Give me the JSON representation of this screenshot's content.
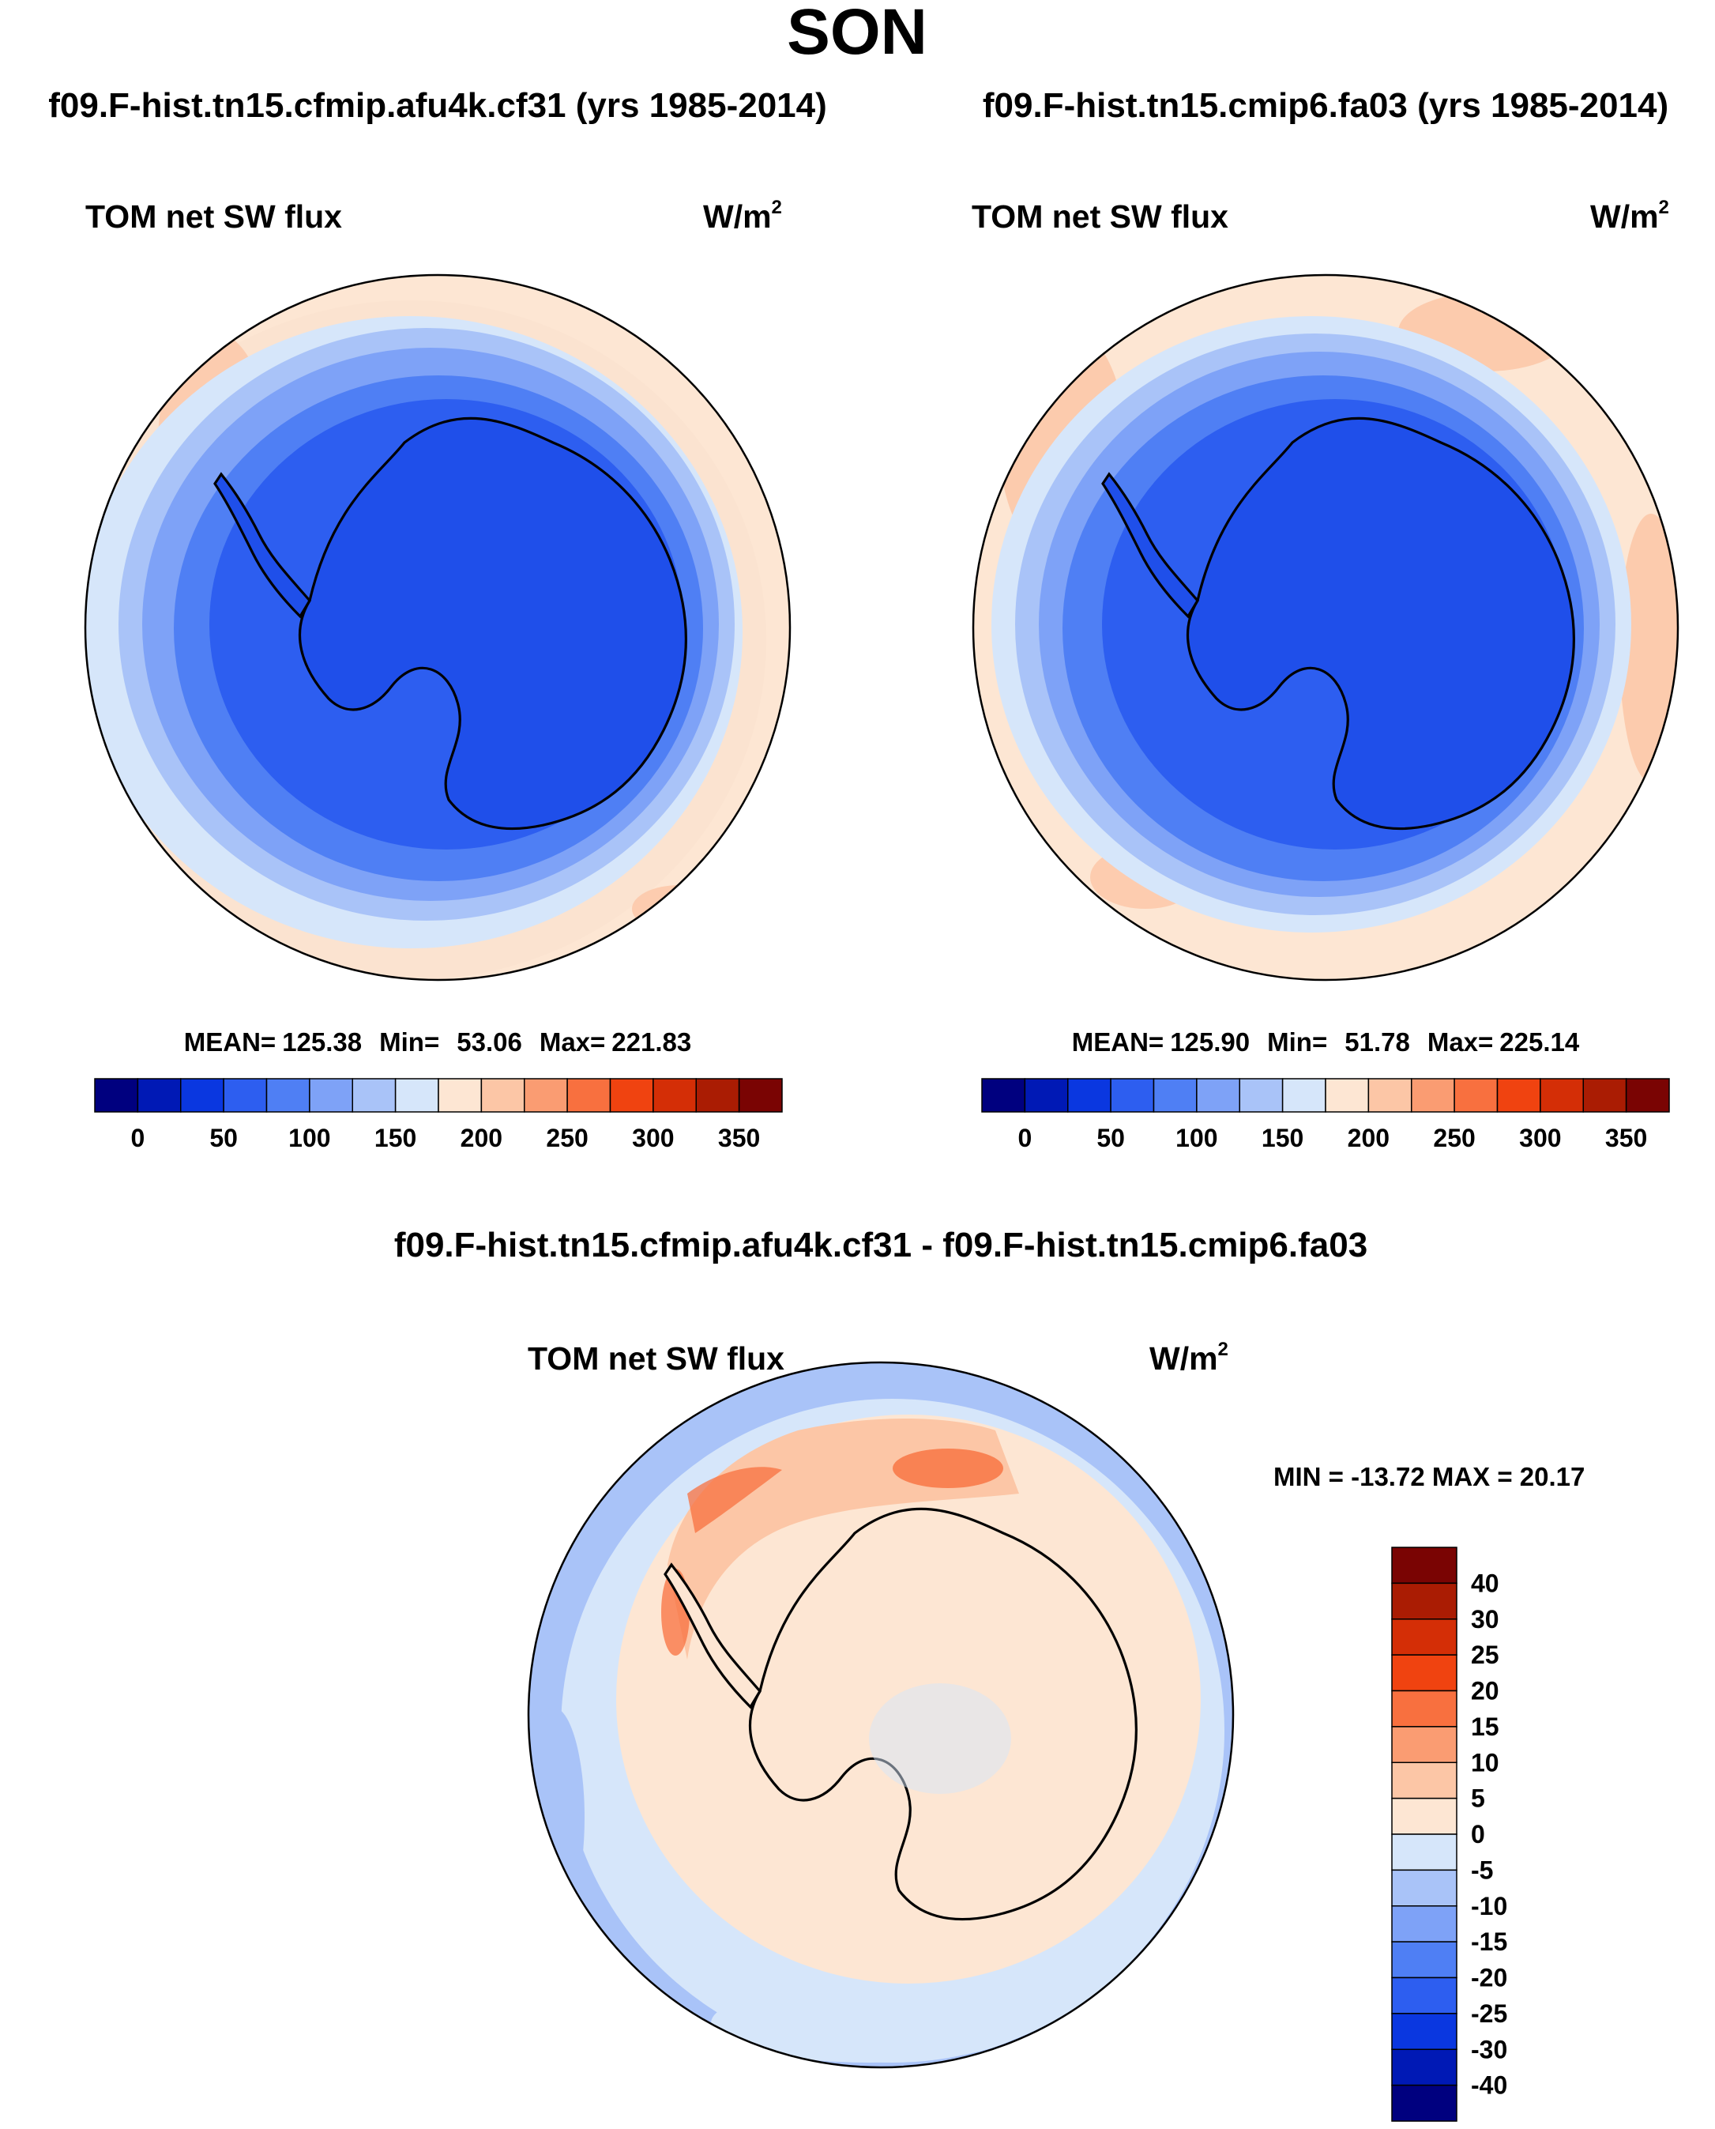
{
  "season": "SON",
  "panels": [
    {
      "case_title": "f09.F-hist.tn15.cfmip.afu4k.cf31 (yrs 1985-2014)",
      "variable": "TOM net SW flux",
      "units_base": "W/m",
      "units_exp": "2",
      "stats": {
        "mean_label": "MEAN=",
        "mean": "125.38",
        "min_label": "Min=",
        "min": "53.06",
        "max_label": "Max=",
        "max": "221.83"
      }
    },
    {
      "case_title": "f09.F-hist.tn15.cmip6.fa03 (yrs 1985-2014)",
      "variable": "TOM net SW flux",
      "units_base": "W/m",
      "units_exp": "2",
      "stats": {
        "mean_label": "MEAN=",
        "mean": "125.90",
        "min_label": "Min=",
        "min": "51.78",
        "max_label": "Max=",
        "max": "225.14"
      }
    }
  ],
  "abs_colorbar": {
    "colors": [
      "#00007f",
      "#0019b5",
      "#0a37e0",
      "#2d5ef0",
      "#4f7ff4",
      "#7ea2f7",
      "#a9c3f8",
      "#d6e6fa",
      "#fde6d3",
      "#fcc6a6",
      "#fa9c72",
      "#f8703f",
      "#f04310",
      "#d42e06",
      "#aa1c03",
      "#7a0403"
    ],
    "ticks": [
      "0",
      "50",
      "100",
      "150",
      "200",
      "250",
      "300",
      "350"
    ]
  },
  "diff_panel": {
    "title": "f09.F-hist.tn15.cfmip.afu4k.cf31 - f09.F-hist.tn15.cmip6.fa03",
    "variable": "TOM net SW flux",
    "units_base": "W/m",
    "units_exp": "2",
    "minmax": "MIN = -13.72 MAX =  20.17"
  },
  "diff_colorbar": {
    "colors": [
      "#7a0403",
      "#aa1c03",
      "#d42e06",
      "#f04310",
      "#f8703f",
      "#fa9c72",
      "#fcc6a6",
      "#fde6d3",
      "#d6e6fa",
      "#a9c3f8",
      "#7ea2f7",
      "#4f7ff4",
      "#2d5ef0",
      "#0a37e0",
      "#0019b5",
      "#00007f"
    ],
    "ticks": [
      "40",
      "30",
      "25",
      "20",
      "15",
      "10",
      "5",
      "0",
      "-5",
      "-10",
      "-15",
      "-20",
      "-25",
      "-30",
      "-40"
    ]
  },
  "palette": {
    "land": "#1f4fea",
    "ice_shelf_blue": "#2d5ef0",
    "ocean_far": "#fde6d3",
    "coast": "#000000"
  }
}
